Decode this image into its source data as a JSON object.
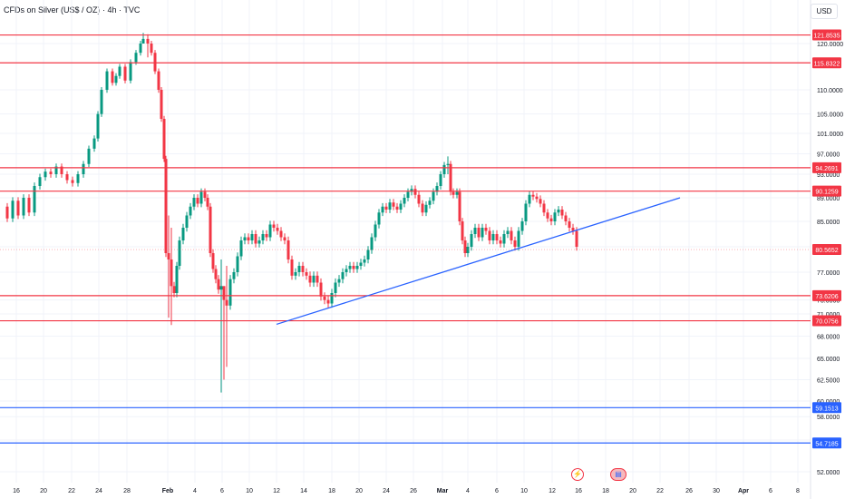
{
  "header": {
    "title": "CFDs on Silver (US$ / OZ) · 4h · TVC",
    "currency_label": "USD"
  },
  "icons": {
    "lightning": "lightning-icon",
    "flag": "us-flag-icon"
  },
  "chart_data": {
    "type": "candlestick",
    "ylim": [
      51.5,
      124.2
    ],
    "y_ticks": [
      "120.0000",
      "110.0000",
      "105.0000",
      "101.0000",
      "97.0000",
      "93.0000",
      "89.0000",
      "85.0000",
      "81.0000",
      "77.0000",
      "73.0000",
      "71.0000",
      "68.0000",
      "65.0000",
      "62.5000",
      "60.0000",
      "58.0000",
      "55.0000",
      "52.0000"
    ],
    "x_ticks": [
      "16",
      "20",
      "22",
      "24",
      "28",
      "Feb",
      "4",
      "6",
      "10",
      "12",
      "14",
      "18",
      "20",
      "24",
      "26",
      "Mar",
      "4",
      "6",
      "10",
      "12",
      "16",
      "18",
      "20",
      "22",
      "26",
      "30",
      "Apr",
      "6",
      "8"
    ],
    "horizontal_levels": [
      {
        "label": "121.8535",
        "value": 121.8535,
        "color": "#f23645"
      },
      {
        "label": "115.8322",
        "value": 115.8322,
        "color": "#f23645"
      },
      {
        "label": "94.2691",
        "value": 94.2691,
        "color": "#f23645"
      },
      {
        "label": "90.1259",
        "value": 90.1259,
        "color": "#f23645"
      },
      {
        "label": "73.6206",
        "value": 73.6206,
        "color": "#f23645"
      },
      {
        "label": "70.0756",
        "value": 70.0756,
        "color": "#f23645"
      },
      {
        "label": "59.1513",
        "value": 59.1513,
        "color": "#2962ff"
      },
      {
        "label": "54.7185",
        "value": 54.7185,
        "color": "#2962ff"
      }
    ],
    "last_price": {
      "label": "80.5652",
      "value": 80.5652,
      "color": "#f23645"
    },
    "trendline": {
      "start": [
        "12 Feb",
        69.6
      ],
      "end": [
        "25 Mar",
        89.0
      ],
      "color": "#2962ff"
    },
    "colors": {
      "up": "#089981",
      "down": "#f23645"
    }
  }
}
